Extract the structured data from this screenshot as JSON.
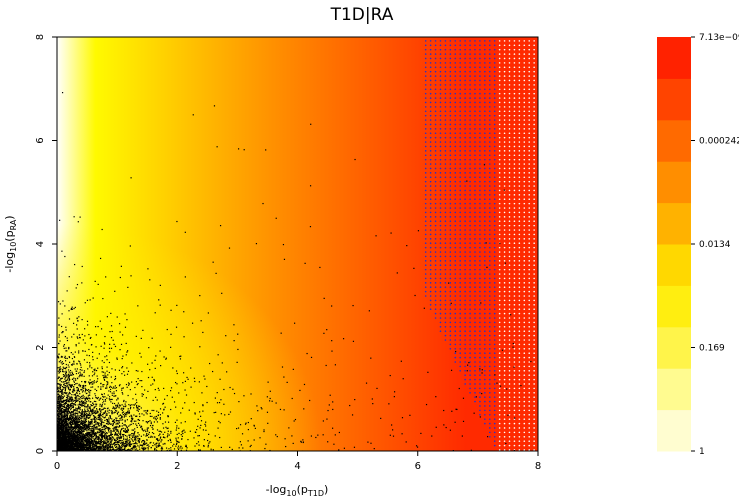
{
  "chart_data": {
    "type": "heatmap",
    "title": "T1D|RA",
    "xlabel": {
      "prefix": "-log",
      "sub1": "10",
      "mid": "(p",
      "sub2": "T1D",
      "suffix": ")"
    },
    "ylabel": {
      "prefix": "-log",
      "sub1": "10",
      "mid": "(p",
      "sub2": "RA",
      "suffix": ")"
    },
    "xlim": [
      0,
      8
    ],
    "ylim": [
      0,
      8
    ],
    "x_ticks": [
      "0",
      "2",
      "4",
      "6",
      "8"
    ],
    "y_ticks": [
      "0",
      "2",
      "4",
      "6",
      "8"
    ],
    "colorbar": {
      "tick_labels": [
        "1",
        "0.169",
        "0.0134",
        "0.000242",
        "7.13e−09"
      ],
      "colors": [
        "#FFFDD0",
        "#FFFB90",
        "#FFF44A",
        "#FFEE10",
        "#FFD800",
        "#FFB200",
        "#FF8E00",
        "#FF6A00",
        "#FF4400",
        "#FF2200"
      ]
    },
    "colors": {
      "white": "#FFFFFF",
      "yellow": "#FFFA00",
      "orange": "#FF9000",
      "red": "#FF2A00",
      "dots_white": "#FFFFFF",
      "dots_blue": "#2233CC",
      "points": "#000000"
    },
    "grid": false,
    "legend": "right colorbar"
  }
}
